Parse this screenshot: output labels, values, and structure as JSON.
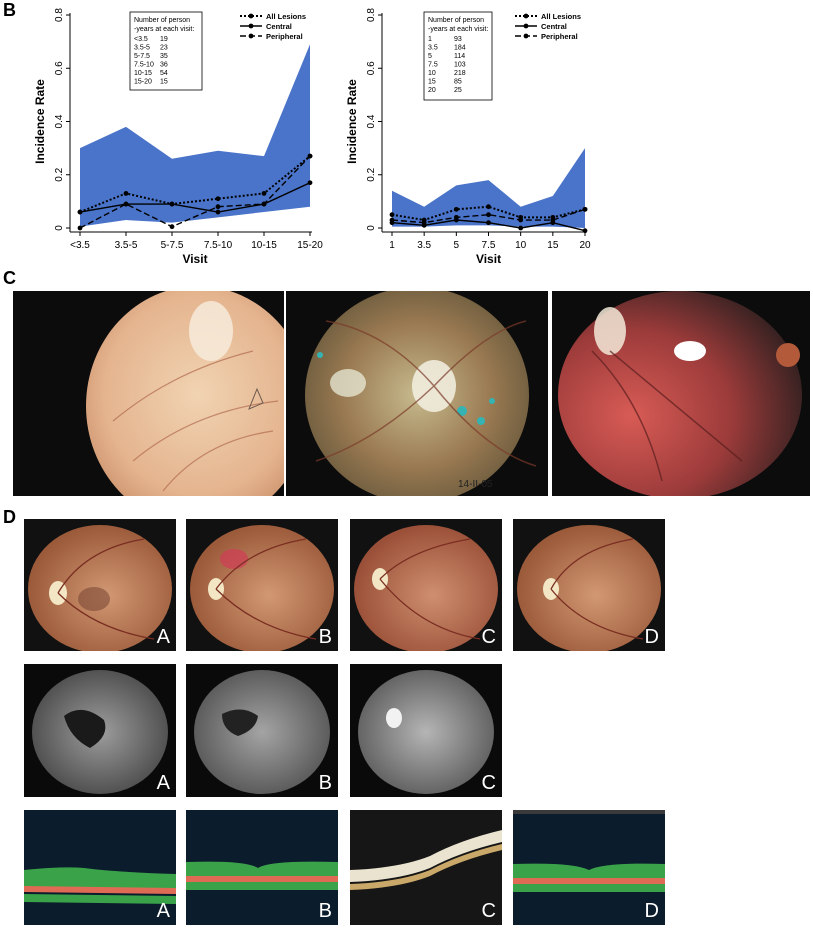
{
  "panels": {
    "b": "B",
    "c": "C",
    "d": "D"
  },
  "photo_date": "14-II-05",
  "letters": {
    "fundus": [
      "A",
      "B",
      "C",
      "D"
    ],
    "angio": [
      "A",
      "B",
      "C"
    ],
    "oct": [
      "A",
      "B",
      "C",
      "D"
    ]
  },
  "chart_data": [
    {
      "type": "line",
      "xlabel": "Visit",
      "ylabel": "Incidence Rate",
      "categories": [
        "<3.5",
        "3.5-5",
        "5-7.5",
        "7.5-10",
        "10-15",
        "15-20"
      ],
      "ylim": [
        0,
        0.8
      ],
      "yticks": [
        "0",
        "0.2",
        "0.4",
        "0.6",
        "0.8"
      ],
      "grid": false,
      "band": {
        "color": "#4a74c9",
        "upper": [
          0.3,
          0.38,
          0.26,
          0.29,
          0.27,
          0.69
        ],
        "lower": [
          0.005,
          0.03,
          0.02,
          0.04,
          0.06,
          0.08
        ]
      },
      "series": [
        {
          "name": "All Lesions",
          "values": [
            0.06,
            0.13,
            0.09,
            0.11,
            0.13,
            0.27
          ]
        },
        {
          "name": "Central",
          "values": [
            0.06,
            0.09,
            0.09,
            0.06,
            0.09,
            0.17
          ]
        },
        {
          "name": "Peripheral",
          "values": [
            0.0,
            0.09,
            0.005,
            0.08,
            0.09,
            0.27
          ]
        }
      ],
      "table": {
        "header": [
          "Number of person",
          "-years at each visit:"
        ],
        "rows": [
          [
            "<3.5",
            "19"
          ],
          [
            "3.5-5",
            "23"
          ],
          [
            "5-7.5",
            "35"
          ],
          [
            "7.5-10",
            "36"
          ],
          [
            "10-15",
            "54"
          ],
          [
            "15-20",
            "15"
          ]
        ]
      }
    },
    {
      "type": "line",
      "xlabel": "Visit",
      "ylabel": "Incidence Rate",
      "categories": [
        "1",
        "3.5",
        "5",
        "7.5",
        "10",
        "15",
        "20"
      ],
      "ylim": [
        0,
        0.8
      ],
      "yticks": [
        "0",
        "0.2",
        "0.4",
        "0.6",
        "0.8"
      ],
      "grid": false,
      "band": {
        "color": "#4a74c9",
        "upper": [
          0.14,
          0.08,
          0.16,
          0.18,
          0.08,
          0.12,
          0.3
        ],
        "lower": [
          0.005,
          0.005,
          0.01,
          0.01,
          0.005,
          0.005,
          0.0
        ]
      },
      "series": [
        {
          "name": "All Lesions",
          "values": [
            0.05,
            0.03,
            0.07,
            0.08,
            0.04,
            0.04,
            0.07
          ]
        },
        {
          "name": "Central",
          "values": [
            0.02,
            0.01,
            0.03,
            0.02,
            0.0,
            0.02,
            -0.01
          ]
        },
        {
          "name": "Peripheral",
          "values": [
            0.03,
            0.02,
            0.04,
            0.05,
            0.03,
            0.03,
            0.07
          ]
        }
      ],
      "table": {
        "header": [
          "Number of person",
          "-years at each visit:"
        ],
        "rows": [
          [
            "1",
            "93"
          ],
          [
            "3.5",
            "184"
          ],
          [
            "5",
            "114"
          ],
          [
            "7.5",
            "103"
          ],
          [
            "10",
            "218"
          ],
          [
            "15",
            "85"
          ],
          [
            "20",
            "25"
          ]
        ]
      }
    }
  ]
}
